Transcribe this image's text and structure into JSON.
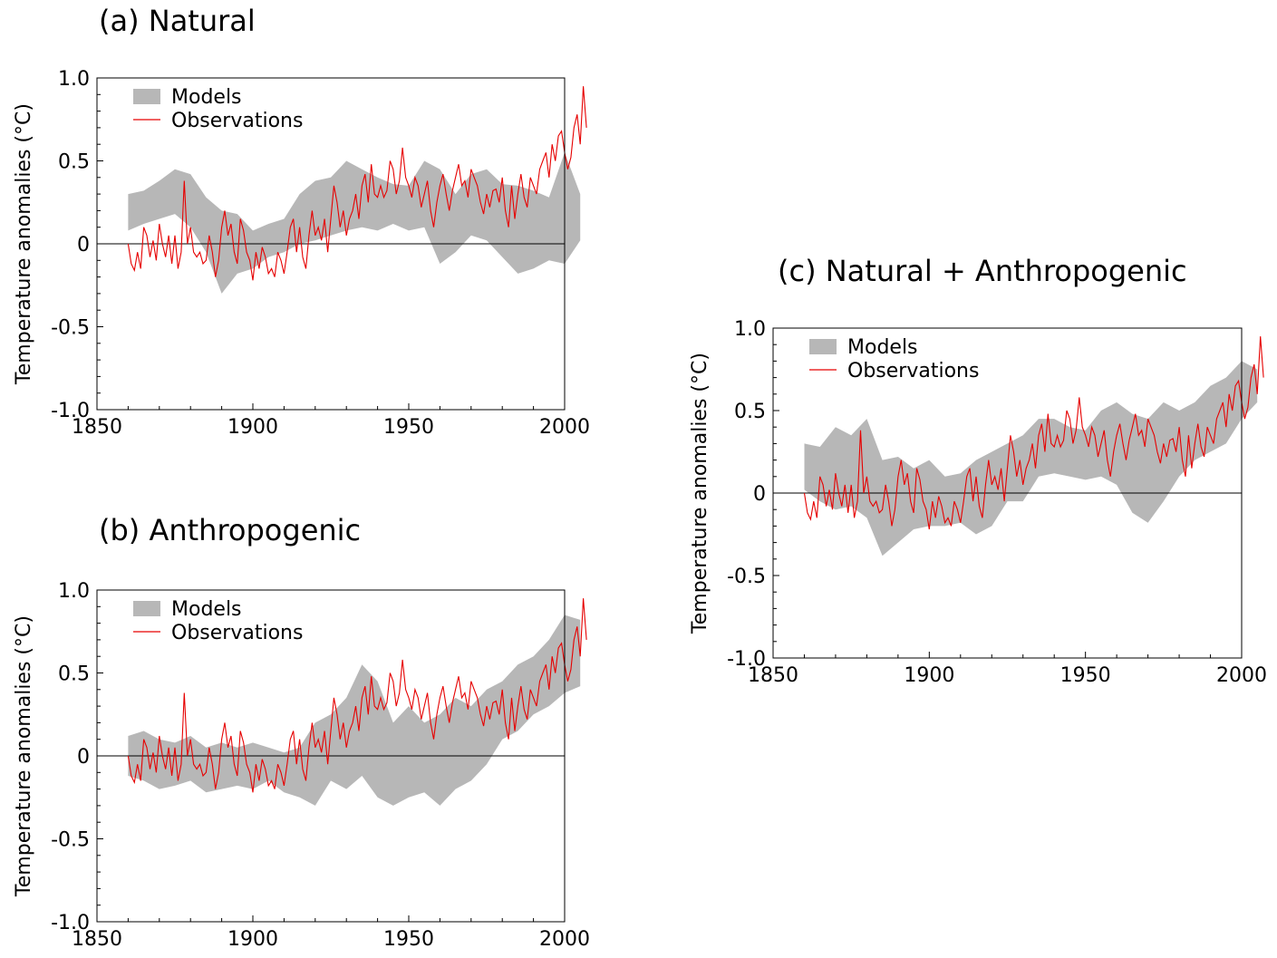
{
  "chart_data": [
    {
      "id": "a",
      "type": "area",
      "title": "(a) Natural",
      "ylabel": "Temperature anomalies (°C)",
      "xlim": [
        1850,
        2000
      ],
      "ylim": [
        -1.0,
        1.0
      ],
      "xticks": [
        1850,
        1900,
        1950,
        2000
      ],
      "yticks": [
        -1.0,
        -0.5,
        0,
        0.5,
        1.0
      ],
      "ytick_labels": [
        "-1.0",
        "-0.5",
        "0",
        "0.5",
        "1.0"
      ],
      "legend": {
        "placement": "top-left",
        "band_label": "Models",
        "line_label": "Observations"
      },
      "colors": {
        "band": "#b7b7b7",
        "line": "#e60000",
        "axis": "#000000"
      },
      "x_start": 1860,
      "x_step": 5,
      "model_upper": [
        0.3,
        0.32,
        0.38,
        0.45,
        0.42,
        0.28,
        0.2,
        0.18,
        0.08,
        0.12,
        0.15,
        0.3,
        0.38,
        0.4,
        0.5,
        0.45,
        0.4,
        0.36,
        0.35,
        0.5,
        0.45,
        0.3,
        0.42,
        0.45,
        0.36,
        0.35,
        0.32,
        0.28,
        0.55,
        0.3
      ],
      "model_lower": [
        0.08,
        0.12,
        0.15,
        0.18,
        0.1,
        -0.05,
        -0.3,
        -0.18,
        -0.15,
        -0.08,
        -0.05,
        0.0,
        0.02,
        0.05,
        0.08,
        0.1,
        0.08,
        0.12,
        0.08,
        0.1,
        -0.12,
        -0.05,
        0.05,
        0.02,
        -0.08,
        -0.18,
        -0.15,
        -0.1,
        -0.12,
        0.02
      ],
      "observations": {
        "x_start": 1860,
        "values": [
          0.0,
          -0.12,
          -0.16,
          -0.05,
          -0.15,
          0.1,
          0.05,
          -0.08,
          0.02,
          -0.1,
          0.12,
          0.0,
          -0.08,
          0.05,
          -0.12,
          0.05,
          -0.15,
          -0.05,
          0.38,
          0.0,
          0.1,
          -0.05,
          -0.08,
          -0.05,
          -0.12,
          -0.1,
          0.05,
          -0.05,
          -0.2,
          -0.1,
          0.1,
          0.2,
          0.05,
          0.12,
          -0.05,
          -0.12,
          0.15,
          0.08,
          -0.05,
          -0.1,
          -0.22,
          -0.05,
          -0.15,
          -0.02,
          -0.08,
          -0.18,
          -0.15,
          -0.2,
          -0.05,
          -0.1,
          -0.18,
          -0.05,
          0.1,
          0.15,
          -0.05,
          0.1,
          -0.08,
          -0.15,
          0.05,
          0.2,
          0.05,
          0.1,
          0.02,
          0.15,
          -0.05,
          0.15,
          0.35,
          0.25,
          0.1,
          0.2,
          0.05,
          0.15,
          0.2,
          0.3,
          0.15,
          0.35,
          0.42,
          0.25,
          0.48,
          0.3,
          0.28,
          0.35,
          0.28,
          0.32,
          0.5,
          0.45,
          0.3,
          0.38,
          0.58,
          0.4,
          0.35,
          0.28,
          0.4,
          0.35,
          0.22,
          0.3,
          0.38,
          0.2,
          0.1,
          0.25,
          0.35,
          0.42,
          0.3,
          0.2,
          0.32,
          0.4,
          0.48,
          0.35,
          0.38,
          0.28,
          0.45,
          0.4,
          0.35,
          0.25,
          0.18,
          0.3,
          0.22,
          0.32,
          0.33,
          0.25,
          0.4,
          0.2,
          0.1,
          0.35,
          0.15,
          0.3,
          0.42,
          0.28,
          0.22,
          0.4,
          0.35,
          0.3,
          0.45,
          0.5,
          0.55,
          0.4,
          0.6,
          0.5,
          0.65,
          0.68,
          0.55,
          0.45,
          0.52,
          0.7,
          0.78,
          0.6,
          0.95,
          0.7
        ]
      }
    },
    {
      "id": "b",
      "type": "area",
      "title": "(b) Anthropogenic",
      "ylabel": "Temperature anomalies (°C)",
      "xlim": [
        1850,
        2000
      ],
      "ylim": [
        -1.0,
        1.0
      ],
      "xticks": [
        1850,
        1900,
        1950,
        2000
      ],
      "yticks": [
        -1.0,
        -0.5,
        0,
        0.5,
        1.0
      ],
      "ytick_labels": [
        "-1.0",
        "-0.5",
        "0",
        "0.5",
        "1.0"
      ],
      "legend": {
        "placement": "top-left",
        "band_label": "Models",
        "line_label": "Observations"
      },
      "colors": {
        "band": "#b7b7b7",
        "line": "#e60000",
        "axis": "#000000"
      },
      "x_start": 1860,
      "x_step": 5,
      "model_upper": [
        0.12,
        0.15,
        0.1,
        0.08,
        0.12,
        0.05,
        0.08,
        0.05,
        0.08,
        0.05,
        0.02,
        0.05,
        0.2,
        0.25,
        0.35,
        0.55,
        0.45,
        0.2,
        0.3,
        0.2,
        0.25,
        0.35,
        0.3,
        0.4,
        0.45,
        0.55,
        0.6,
        0.7,
        0.85,
        0.82
      ],
      "model_lower": [
        -0.12,
        -0.15,
        -0.2,
        -0.18,
        -0.15,
        -0.22,
        -0.2,
        -0.18,
        -0.2,
        -0.15,
        -0.22,
        -0.25,
        -0.3,
        -0.15,
        -0.2,
        -0.12,
        -0.25,
        -0.3,
        -0.25,
        -0.22,
        -0.3,
        -0.2,
        -0.15,
        -0.05,
        0.1,
        0.15,
        0.25,
        0.3,
        0.38,
        0.42
      ],
      "observations": {
        "x_start": 1860,
        "values": [
          0.0,
          -0.12,
          -0.16,
          -0.05,
          -0.15,
          0.1,
          0.05,
          -0.08,
          0.02,
          -0.1,
          0.12,
          0.0,
          -0.08,
          0.05,
          -0.12,
          0.05,
          -0.15,
          -0.05,
          0.38,
          0.0,
          0.1,
          -0.05,
          -0.08,
          -0.05,
          -0.12,
          -0.1,
          0.05,
          -0.05,
          -0.2,
          -0.1,
          0.1,
          0.2,
          0.05,
          0.12,
          -0.05,
          -0.12,
          0.15,
          0.08,
          -0.05,
          -0.1,
          -0.22,
          -0.05,
          -0.15,
          -0.02,
          -0.08,
          -0.18,
          -0.15,
          -0.2,
          -0.05,
          -0.1,
          -0.18,
          -0.05,
          0.1,
          0.15,
          -0.05,
          0.1,
          -0.08,
          -0.15,
          0.05,
          0.2,
          0.05,
          0.1,
          0.02,
          0.15,
          -0.05,
          0.15,
          0.35,
          0.25,
          0.1,
          0.2,
          0.05,
          0.15,
          0.2,
          0.3,
          0.15,
          0.35,
          0.42,
          0.25,
          0.48,
          0.3,
          0.28,
          0.35,
          0.28,
          0.32,
          0.5,
          0.45,
          0.3,
          0.38,
          0.58,
          0.4,
          0.35,
          0.28,
          0.4,
          0.35,
          0.22,
          0.3,
          0.38,
          0.2,
          0.1,
          0.25,
          0.35,
          0.42,
          0.3,
          0.2,
          0.32,
          0.4,
          0.48,
          0.35,
          0.38,
          0.28,
          0.45,
          0.4,
          0.35,
          0.25,
          0.18,
          0.3,
          0.22,
          0.32,
          0.33,
          0.25,
          0.4,
          0.2,
          0.1,
          0.35,
          0.15,
          0.3,
          0.42,
          0.28,
          0.22,
          0.4,
          0.35,
          0.3,
          0.45,
          0.5,
          0.55,
          0.4,
          0.6,
          0.5,
          0.65,
          0.68,
          0.55,
          0.45,
          0.52,
          0.7,
          0.78,
          0.6,
          0.95,
          0.7
        ]
      }
    },
    {
      "id": "c",
      "type": "area",
      "title": "(c) Natural + Anthropogenic",
      "ylabel": "Temperature anomalies (°C)",
      "xlim": [
        1850,
        2000
      ],
      "ylim": [
        -1.0,
        1.0
      ],
      "xticks": [
        1850,
        1900,
        1950,
        2000
      ],
      "yticks": [
        -1.0,
        -0.5,
        0,
        0.5,
        1.0
      ],
      "ytick_labels": [
        "-1.0",
        "-0.5",
        "0",
        "0.5",
        "1.0"
      ],
      "legend": {
        "placement": "top-left",
        "band_label": "Models",
        "line_label": "Observations"
      },
      "colors": {
        "band": "#b7b7b7",
        "line": "#e60000",
        "axis": "#000000"
      },
      "x_start": 1860,
      "x_step": 5,
      "model_upper": [
        0.3,
        0.28,
        0.4,
        0.35,
        0.45,
        0.2,
        0.22,
        0.15,
        0.2,
        0.1,
        0.12,
        0.2,
        0.25,
        0.3,
        0.35,
        0.45,
        0.45,
        0.4,
        0.38,
        0.5,
        0.55,
        0.48,
        0.45,
        0.55,
        0.5,
        0.55,
        0.65,
        0.7,
        0.8,
        0.75
      ],
      "model_lower": [
        0.02,
        -0.05,
        -0.1,
        -0.08,
        -0.15,
        -0.38,
        -0.3,
        -0.22,
        -0.2,
        -0.2,
        -0.18,
        -0.25,
        -0.2,
        -0.05,
        -0.05,
        0.1,
        0.12,
        0.1,
        0.08,
        0.1,
        0.05,
        -0.12,
        -0.18,
        -0.05,
        0.1,
        0.2,
        0.25,
        0.3,
        0.45,
        0.55
      ],
      "observations": {
        "x_start": 1860,
        "values": [
          0.0,
          -0.12,
          -0.16,
          -0.05,
          -0.15,
          0.1,
          0.05,
          -0.08,
          0.02,
          -0.1,
          0.12,
          0.0,
          -0.08,
          0.05,
          -0.12,
          0.05,
          -0.15,
          -0.05,
          0.38,
          0.0,
          0.1,
          -0.05,
          -0.08,
          -0.05,
          -0.12,
          -0.1,
          0.05,
          -0.05,
          -0.2,
          -0.1,
          0.1,
          0.2,
          0.05,
          0.12,
          -0.05,
          -0.12,
          0.15,
          0.08,
          -0.05,
          -0.1,
          -0.22,
          -0.05,
          -0.15,
          -0.02,
          -0.08,
          -0.18,
          -0.15,
          -0.2,
          -0.05,
          -0.1,
          -0.18,
          -0.05,
          0.1,
          0.15,
          -0.05,
          0.1,
          -0.08,
          -0.15,
          0.05,
          0.2,
          0.05,
          0.1,
          0.02,
          0.15,
          -0.05,
          0.15,
          0.35,
          0.25,
          0.1,
          0.2,
          0.05,
          0.15,
          0.2,
          0.3,
          0.15,
          0.35,
          0.42,
          0.25,
          0.48,
          0.3,
          0.28,
          0.35,
          0.28,
          0.32,
          0.5,
          0.45,
          0.3,
          0.38,
          0.58,
          0.4,
          0.35,
          0.28,
          0.4,
          0.35,
          0.22,
          0.3,
          0.38,
          0.2,
          0.1,
          0.25,
          0.35,
          0.42,
          0.3,
          0.2,
          0.32,
          0.4,
          0.48,
          0.35,
          0.38,
          0.28,
          0.45,
          0.4,
          0.35,
          0.25,
          0.18,
          0.3,
          0.22,
          0.32,
          0.33,
          0.25,
          0.4,
          0.2,
          0.1,
          0.35,
          0.15,
          0.3,
          0.42,
          0.28,
          0.22,
          0.4,
          0.35,
          0.3,
          0.45,
          0.5,
          0.55,
          0.4,
          0.6,
          0.5,
          0.65,
          0.68,
          0.55,
          0.45,
          0.52,
          0.7,
          0.78,
          0.6,
          0.95,
          0.7
        ]
      }
    }
  ]
}
